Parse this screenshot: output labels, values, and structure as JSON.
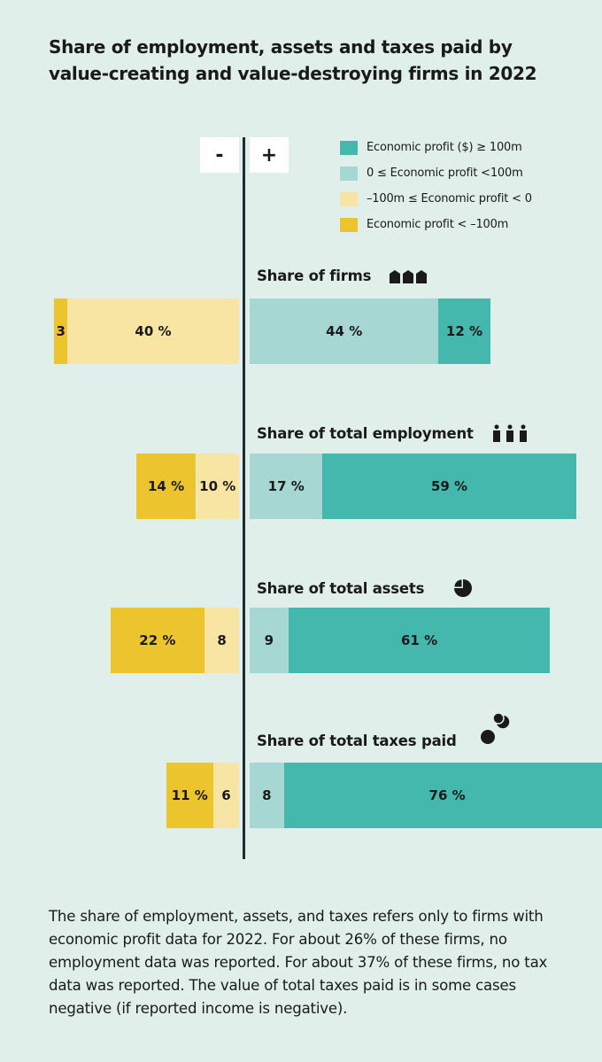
{
  "colors": {
    "background": "#e0efea",
    "profit_ge_100m": "#45b8ae",
    "profit_0_to_100m": "#a6d7d2",
    "loss_0_to_100m": "#f8e5a4",
    "loss_lt_100m": "#ecc42e",
    "axis": "#1f2b33"
  },
  "title_lines": [
    "Share of employment, assets and taxes paid by",
    "value-creating and value-destroying firms in 2022"
  ],
  "signs": {
    "negative": "-",
    "positive": "+"
  },
  "legend": [
    {
      "label": "Economic profit ($) ≥ 100m",
      "color": "#45b8ae"
    },
    {
      "label": "0 ≤ Economic profit <100m",
      "color": "#a6d7d2"
    },
    {
      "label": "–100m ≤ Economic profit < 0",
      "color": "#f8e5a4"
    },
    {
      "label": "Economic profit < –100m",
      "color": "#ecc42e"
    }
  ],
  "footnote": "The share of employment, assets, and taxes refers only to firms with economic profit data for 2022. For about 26% of these firms, no employment data was reported. For about 37% of these firms, no tax data was reported. The value of total taxes paid is in some cases negative (if reported income is negative).",
  "chart_data": {
    "type": "bar",
    "orientation": "horizontal-diverging",
    "unit": "%",
    "legend_placement": "top-right",
    "grid": false,
    "categories": [
      "Share of firms",
      "Share of total employment",
      "Share of total assets",
      "Share of total taxes paid"
    ],
    "category_icons": [
      "buildings-icon",
      "people-icon",
      "pie-icon",
      "coins-icon"
    ],
    "series": [
      {
        "name": "Economic profit < –100m",
        "side": "negative",
        "values": [
          3,
          14,
          22,
          11
        ],
        "labels": [
          "3",
          "14 %",
          "22 %",
          "11 %"
        ]
      },
      {
        "name": "–100m ≤ Economic profit < 0",
        "side": "negative",
        "values": [
          40,
          10,
          8,
          6
        ],
        "labels": [
          "40 %",
          "10 %",
          "8",
          "6"
        ]
      },
      {
        "name": "0 ≤ Economic profit <100m",
        "side": "positive",
        "values": [
          44,
          17,
          9,
          8
        ],
        "labels": [
          "44 %",
          "17 %",
          "9",
          "8"
        ]
      },
      {
        "name": "Economic profit ($) ≥ 100m",
        "side": "positive",
        "values": [
          12,
          59,
          61,
          76
        ],
        "labels": [
          "12 %",
          "59 %",
          "61 %",
          "76 %"
        ]
      }
    ]
  }
}
